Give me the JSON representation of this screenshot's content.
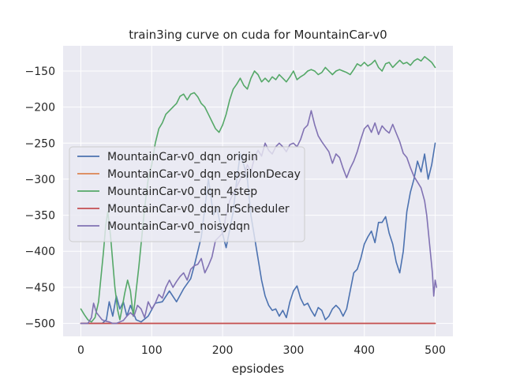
{
  "chart_data": {
    "type": "line",
    "title": "train3ing curve on cuda for MountainCar-v0",
    "xlabel": "epsiodes",
    "ylabel": "",
    "xlim": [
      -25,
      525
    ],
    "ylim": [
      -518,
      -115
    ],
    "xticks": [
      0,
      100,
      200,
      300,
      400,
      500
    ],
    "yticks": [
      -500,
      -450,
      -400,
      -350,
      -300,
      -250,
      -200,
      -150
    ],
    "grid": true,
    "legend_position": "center-left",
    "series": [
      {
        "name": "MountainCar-v0_dqn_origin",
        "color": "#4c72b0",
        "points": [
          [
            0,
            -500
          ],
          [
            10,
            -500
          ],
          [
            20,
            -500
          ],
          [
            30,
            -500
          ],
          [
            36,
            -495
          ],
          [
            40,
            -470
          ],
          [
            45,
            -490
          ],
          [
            50,
            -462
          ],
          [
            55,
            -480
          ],
          [
            60,
            -470
          ],
          [
            65,
            -490
          ],
          [
            70,
            -475
          ],
          [
            78,
            -495
          ],
          [
            85,
            -498
          ],
          [
            95,
            -490
          ],
          [
            105,
            -472
          ],
          [
            115,
            -470
          ],
          [
            125,
            -455
          ],
          [
            135,
            -470
          ],
          [
            145,
            -452
          ],
          [
            155,
            -438
          ],
          [
            160,
            -420
          ],
          [
            165,
            -400
          ],
          [
            170,
            -380
          ],
          [
            175,
            -340
          ],
          [
            180,
            -300
          ],
          [
            183,
            -320
          ],
          [
            187,
            -350
          ],
          [
            192,
            -340
          ],
          [
            198,
            -368
          ],
          [
            205,
            -395
          ],
          [
            210,
            -370
          ],
          [
            215,
            -345
          ],
          [
            220,
            -300
          ],
          [
            225,
            -265
          ],
          [
            230,
            -280
          ],
          [
            235,
            -300
          ],
          [
            240,
            -350
          ],
          [
            245,
            -380
          ],
          [
            250,
            -410
          ],
          [
            255,
            -440
          ],
          [
            260,
            -462
          ],
          [
            265,
            -475
          ],
          [
            270,
            -482
          ],
          [
            275,
            -480
          ],
          [
            280,
            -490
          ],
          [
            285,
            -482
          ],
          [
            290,
            -492
          ],
          [
            295,
            -470
          ],
          [
            300,
            -455
          ],
          [
            305,
            -448
          ],
          [
            310,
            -465
          ],
          [
            315,
            -475
          ],
          [
            320,
            -472
          ],
          [
            325,
            -482
          ],
          [
            330,
            -490
          ],
          [
            335,
            -478
          ],
          [
            340,
            -482
          ],
          [
            345,
            -495
          ],
          [
            350,
            -490
          ],
          [
            355,
            -480
          ],
          [
            360,
            -475
          ],
          [
            365,
            -480
          ],
          [
            370,
            -490
          ],
          [
            375,
            -480
          ],
          [
            380,
            -455
          ],
          [
            385,
            -430
          ],
          [
            390,
            -425
          ],
          [
            395,
            -410
          ],
          [
            400,
            -390
          ],
          [
            405,
            -380
          ],
          [
            410,
            -372
          ],
          [
            415,
            -388
          ],
          [
            420,
            -360
          ],
          [
            425,
            -360
          ],
          [
            430,
            -352
          ],
          [
            435,
            -375
          ],
          [
            440,
            -390
          ],
          [
            445,
            -415
          ],
          [
            450,
            -430
          ],
          [
            455,
            -400
          ],
          [
            460,
            -345
          ],
          [
            465,
            -318
          ],
          [
            470,
            -300
          ],
          [
            475,
            -275
          ],
          [
            480,
            -290
          ],
          [
            485,
            -265
          ],
          [
            490,
            -300
          ],
          [
            495,
            -280
          ],
          [
            500,
            -250
          ]
        ]
      },
      {
        "name": "MountainCar-v0_dqn_epsilonDecay",
        "color": "#dd8452",
        "points": [
          [
            0,
            -500
          ],
          [
            500,
            -500
          ]
        ]
      },
      {
        "name": "MountainCar-v0_dqn_4step",
        "color": "#55a868",
        "points": [
          [
            0,
            -480
          ],
          [
            5,
            -488
          ],
          [
            10,
            -495
          ],
          [
            15,
            -498
          ],
          [
            20,
            -492
          ],
          [
            25,
            -470
          ],
          [
            28,
            -440
          ],
          [
            32,
            -400
          ],
          [
            35,
            -365
          ],
          [
            38,
            -345
          ],
          [
            42,
            -380
          ],
          [
            45,
            -415
          ],
          [
            48,
            -450
          ],
          [
            52,
            -482
          ],
          [
            55,
            -495
          ],
          [
            58,
            -480
          ],
          [
            62,
            -458
          ],
          [
            66,
            -440
          ],
          [
            70,
            -455
          ],
          [
            74,
            -490
          ],
          [
            78,
            -455
          ],
          [
            82,
            -420
          ],
          [
            86,
            -380
          ],
          [
            90,
            -340
          ],
          [
            95,
            -300
          ],
          [
            100,
            -280
          ],
          [
            105,
            -250
          ],
          [
            110,
            -230
          ],
          [
            115,
            -222
          ],
          [
            120,
            -210
          ],
          [
            125,
            -205
          ],
          [
            130,
            -200
          ],
          [
            135,
            -195
          ],
          [
            140,
            -185
          ],
          [
            145,
            -182
          ],
          [
            150,
            -190
          ],
          [
            155,
            -182
          ],
          [
            160,
            -180
          ],
          [
            165,
            -186
          ],
          [
            170,
            -195
          ],
          [
            175,
            -200
          ],
          [
            180,
            -210
          ],
          [
            185,
            -220
          ],
          [
            190,
            -230
          ],
          [
            195,
            -235
          ],
          [
            200,
            -225
          ],
          [
            205,
            -210
          ],
          [
            210,
            -190
          ],
          [
            215,
            -175
          ],
          [
            220,
            -168
          ],
          [
            225,
            -160
          ],
          [
            230,
            -170
          ],
          [
            235,
            -175
          ],
          [
            240,
            -160
          ],
          [
            245,
            -150
          ],
          [
            250,
            -155
          ],
          [
            255,
            -165
          ],
          [
            260,
            -160
          ],
          [
            265,
            -165
          ],
          [
            270,
            -158
          ],
          [
            275,
            -162
          ],
          [
            280,
            -155
          ],
          [
            285,
            -160
          ],
          [
            290,
            -165
          ],
          [
            295,
            -158
          ],
          [
            300,
            -150
          ],
          [
            305,
            -162
          ],
          [
            310,
            -158
          ],
          [
            315,
            -155
          ],
          [
            320,
            -150
          ],
          [
            325,
            -148
          ],
          [
            330,
            -150
          ],
          [
            335,
            -155
          ],
          [
            340,
            -152
          ],
          [
            345,
            -145
          ],
          [
            350,
            -150
          ],
          [
            355,
            -155
          ],
          [
            360,
            -150
          ],
          [
            365,
            -148
          ],
          [
            370,
            -150
          ],
          [
            375,
            -152
          ],
          [
            380,
            -155
          ],
          [
            385,
            -148
          ],
          [
            390,
            -140
          ],
          [
            395,
            -143
          ],
          [
            400,
            -138
          ],
          [
            405,
            -143
          ],
          [
            410,
            -140
          ],
          [
            415,
            -135
          ],
          [
            420,
            -145
          ],
          [
            425,
            -150
          ],
          [
            430,
            -140
          ],
          [
            435,
            -138
          ],
          [
            440,
            -145
          ],
          [
            445,
            -140
          ],
          [
            450,
            -135
          ],
          [
            455,
            -140
          ],
          [
            460,
            -138
          ],
          [
            465,
            -142
          ],
          [
            470,
            -136
          ],
          [
            475,
            -133
          ],
          [
            480,
            -136
          ],
          [
            485,
            -130
          ],
          [
            490,
            -134
          ],
          [
            495,
            -138
          ],
          [
            500,
            -145
          ]
        ]
      },
      {
        "name": "MountainCar-v0_dqn_lrScheduler",
        "color": "#c44e52",
        "points": [
          [
            0,
            -500
          ],
          [
            500,
            -500
          ]
        ]
      },
      {
        "name": "MountainCar-v0_noisydqn",
        "color": "#8172b3",
        "points": [
          [
            0,
            -500
          ],
          [
            5,
            -500
          ],
          [
            10,
            -500
          ],
          [
            15,
            -492
          ],
          [
            18,
            -472
          ],
          [
            22,
            -485
          ],
          [
            26,
            -490
          ],
          [
            30,
            -495
          ],
          [
            35,
            -497
          ],
          [
            40,
            -498
          ],
          [
            45,
            -500
          ],
          [
            50,
            -500
          ],
          [
            55,
            -498
          ],
          [
            60,
            -496
          ],
          [
            65,
            -490
          ],
          [
            70,
            -485
          ],
          [
            75,
            -490
          ],
          [
            80,
            -475
          ],
          [
            85,
            -480
          ],
          [
            90,
            -492
          ],
          [
            95,
            -470
          ],
          [
            100,
            -480
          ],
          [
            105,
            -472
          ],
          [
            110,
            -460
          ],
          [
            115,
            -465
          ],
          [
            120,
            -450
          ],
          [
            125,
            -440
          ],
          [
            130,
            -450
          ],
          [
            135,
            -442
          ],
          [
            140,
            -435
          ],
          [
            145,
            -430
          ],
          [
            150,
            -440
          ],
          [
            155,
            -425
          ],
          [
            160,
            -420
          ],
          [
            165,
            -418
          ],
          [
            170,
            -410
          ],
          [
            175,
            -430
          ],
          [
            180,
            -420
          ],
          [
            185,
            -408
          ],
          [
            190,
            -385
          ],
          [
            195,
            -380
          ],
          [
            200,
            -375
          ],
          [
            205,
            -350
          ],
          [
            210,
            -330
          ],
          [
            215,
            -320
          ],
          [
            220,
            -310
          ],
          [
            225,
            -300
          ],
          [
            230,
            -295
          ],
          [
            235,
            -280
          ],
          [
            240,
            -290
          ],
          [
            245,
            -270
          ],
          [
            250,
            -260
          ],
          [
            255,
            -268
          ],
          [
            260,
            -250
          ],
          [
            265,
            -260
          ],
          [
            270,
            -265
          ],
          [
            275,
            -255
          ],
          [
            280,
            -250
          ],
          [
            285,
            -255
          ],
          [
            290,
            -262
          ],
          [
            295,
            -252
          ],
          [
            300,
            -250
          ],
          [
            305,
            -255
          ],
          [
            310,
            -245
          ],
          [
            315,
            -230
          ],
          [
            320,
            -225
          ],
          [
            325,
            -205
          ],
          [
            330,
            -225
          ],
          [
            335,
            -240
          ],
          [
            340,
            -248
          ],
          [
            345,
            -255
          ],
          [
            350,
            -262
          ],
          [
            355,
            -278
          ],
          [
            360,
            -265
          ],
          [
            365,
            -270
          ],
          [
            370,
            -285
          ],
          [
            375,
            -298
          ],
          [
            380,
            -285
          ],
          [
            385,
            -275
          ],
          [
            390,
            -262
          ],
          [
            395,
            -245
          ],
          [
            400,
            -230
          ],
          [
            405,
            -225
          ],
          [
            410,
            -235
          ],
          [
            415,
            -222
          ],
          [
            420,
            -238
          ],
          [
            425,
            -226
          ],
          [
            430,
            -232
          ],
          [
            435,
            -236
          ],
          [
            440,
            -224
          ],
          [
            445,
            -236
          ],
          [
            450,
            -248
          ],
          [
            455,
            -264
          ],
          [
            460,
            -270
          ],
          [
            465,
            -284
          ],
          [
            470,
            -296
          ],
          [
            475,
            -304
          ],
          [
            480,
            -312
          ],
          [
            485,
            -330
          ],
          [
            488,
            -350
          ],
          [
            492,
            -390
          ],
          [
            496,
            -430
          ],
          [
            498,
            -462
          ],
          [
            500,
            -440
          ],
          [
            502,
            -450
          ]
        ]
      }
    ]
  }
}
